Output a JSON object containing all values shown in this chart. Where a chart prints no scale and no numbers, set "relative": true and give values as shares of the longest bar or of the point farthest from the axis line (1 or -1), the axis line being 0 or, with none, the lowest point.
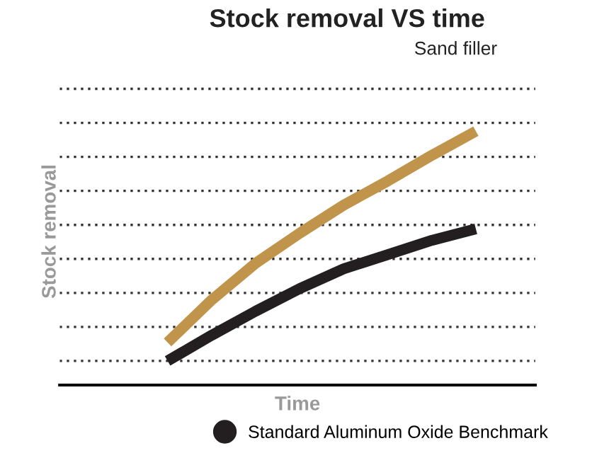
{
  "chart_data": {
    "type": "line",
    "title": "Stock removal VS time",
    "subtitle": "Sand filler",
    "xlabel": "Time",
    "ylabel": "Stock removal",
    "categories": [
      null,
      null,
      null,
      null,
      null,
      null,
      null,
      null
    ],
    "relative": true,
    "grid": "y",
    "legend": "bottom",
    "marker": "none",
    "line_style": "solid",
    "series": [
      {
        "color": "#c0954b",
        "values": [
          0.168,
          0.335,
          0.48,
          0.598,
          0.709,
          0.804,
          0.905,
          1
        ]
      },
      {
        "name": "Standard Aluminum Oxide Benchmark",
        "color": "#231f20",
        "values": [
          0.095,
          0.196,
          0.291,
          0.38,
          0.458,
          0.514,
          0.57,
          0.615
        ]
      }
    ]
  }
}
